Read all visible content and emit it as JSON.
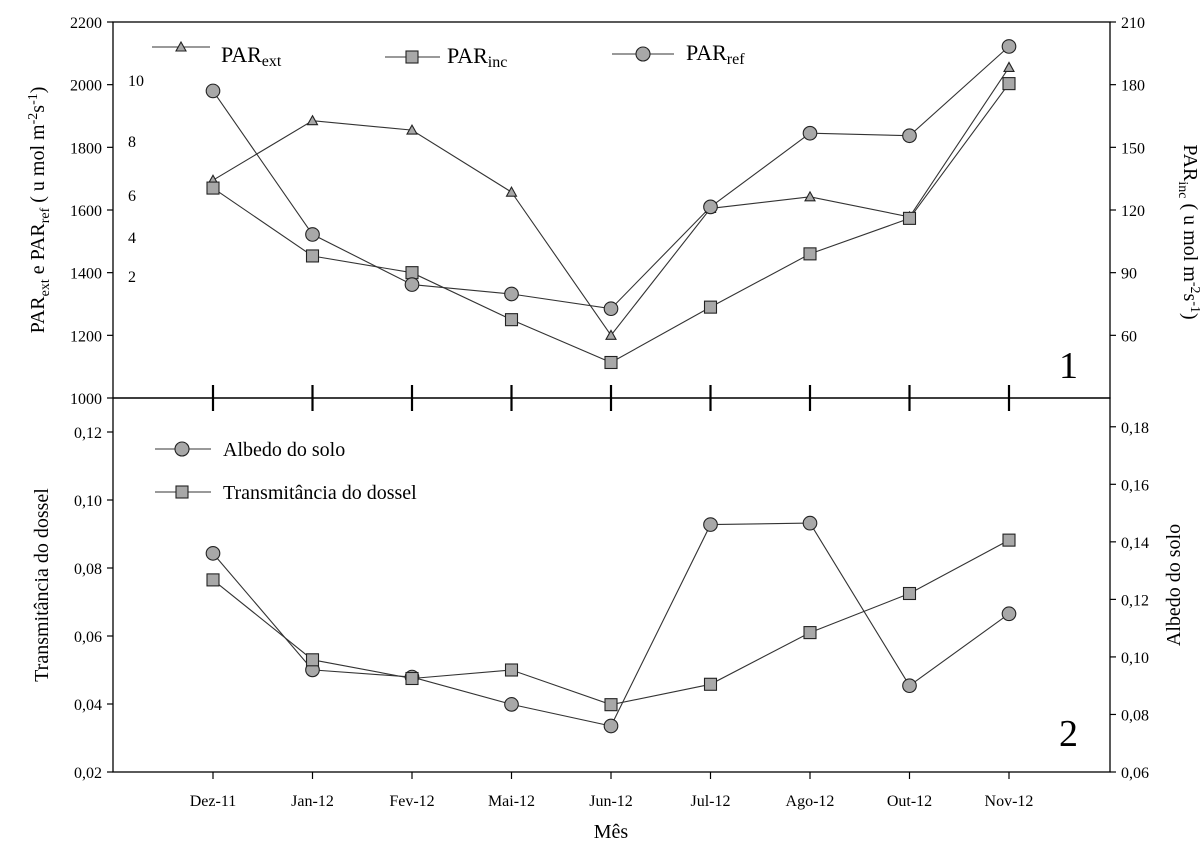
{
  "chart_data": [
    {
      "type": "line",
      "panel_label": "1",
      "categories": [
        "Dez-11",
        "Jan-12",
        "Fev-12",
        "Mai-12",
        "Jun-12",
        "Jul-12",
        "Ago-12",
        "Out-12",
        "Nov-12"
      ],
      "ylabel_left": {
        "main": "PAR",
        "sub1": "ext",
        "mid": " e PAR",
        "sub2": "ref",
        "tail": "( u mol m",
        "sup": "-2",
        "tail2": "s",
        "sup2": "-1",
        "close": ")"
      },
      "ylabel_right": {
        "main": "PAR",
        "sub1": "inc",
        "tail": "( u mol m",
        "sup": "-2",
        "tail2": "s",
        "sup2": "-1",
        "close": ")"
      },
      "ylim_left": [
        1000,
        2200
      ],
      "yticks_left": [
        "1000",
        "1200",
        "1400",
        "1600",
        "1800",
        "2000",
        "2200"
      ],
      "ylim_right": [
        30,
        210
      ],
      "yticks_right": [
        "60",
        "90",
        "120",
        "150",
        "180",
        "210"
      ],
      "inner_ticks": [
        "2",
        "4",
        "6",
        "8",
        "10"
      ],
      "legend_placement": "top",
      "series": [
        {
          "name": "PAR",
          "name_sub": "ext",
          "marker": "triangle",
          "axis": "left",
          "values": [
            1695,
            1885,
            1855,
            1657,
            1200,
            1605,
            1642,
            1578,
            2055
          ]
        },
        {
          "name": "PAR",
          "name_sub": "inc",
          "marker": "square",
          "axis": "right",
          "values": [
            130.5,
            98,
            90,
            67.5,
            47,
            73.5,
            99,
            116,
            180.5
          ]
        },
        {
          "name": "PAR",
          "name_sub": "ref",
          "marker": "circle",
          "axis": "left",
          "values": [
            1980,
            1522,
            1362,
            1332,
            1285,
            1610,
            1845,
            1837,
            2122
          ]
        }
      ]
    },
    {
      "type": "line",
      "panel_label": "2",
      "categories": [
        "Dez-11",
        "Jan-12",
        "Fev-12",
        "Mai-12",
        "Jun-12",
        "Jul-12",
        "Ago-12",
        "Out-12",
        "Nov-12"
      ],
      "xlabel": "Mês",
      "ylabel_left": "Transmitância do dossel",
      "ylabel_right": "Albedo do solo",
      "ylim_left": [
        0.02,
        0.13
      ],
      "yticks_left": [
        "0,02",
        "0,04",
        "0,06",
        "0,08",
        "0,10",
        "0,12"
      ],
      "ylim_right": [
        0.06,
        0.19
      ],
      "yticks_right": [
        "0,06",
        "0,08",
        "0,10",
        "0,12",
        "0,14",
        "0,16",
        "0,18"
      ],
      "legend_placement": "top-left",
      "series": [
        {
          "name": "Albedo do solo",
          "marker": "circle",
          "axis": "right",
          "values": [
            0.136,
            0.0955,
            0.093,
            0.0835,
            0.076,
            0.146,
            0.1465,
            0.09,
            0.115
          ]
        },
        {
          "name": "Transmitância do dossel",
          "marker": "square",
          "axis": "left",
          "values": [
            0.0765,
            0.053,
            0.0475,
            0.05,
            0.0398,
            0.0458,
            0.061,
            0.0725,
            0.0882
          ]
        }
      ]
    }
  ]
}
